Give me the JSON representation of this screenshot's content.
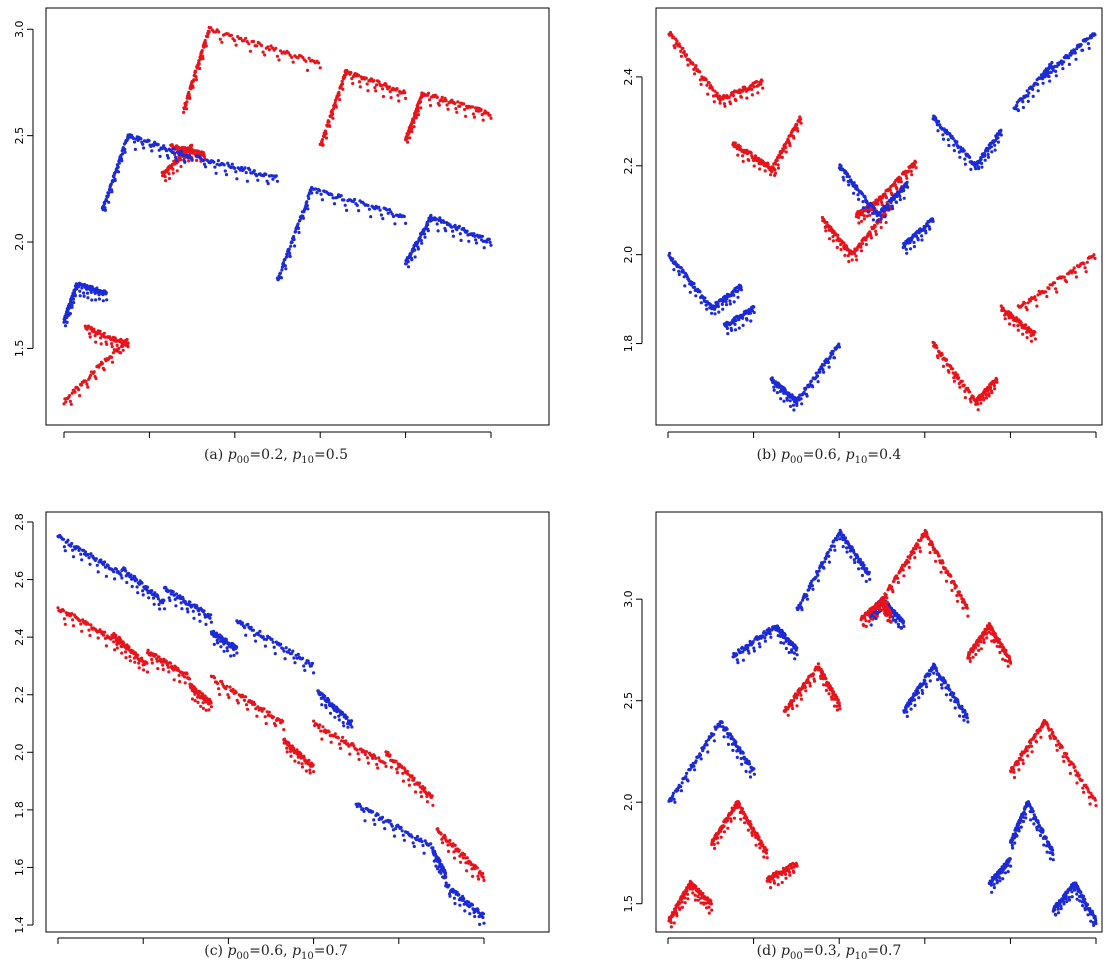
{
  "colors": {
    "red": "#e8141b",
    "blue": "#1d2bd6"
  },
  "panels": [
    {
      "id": "a",
      "caption": {
        "label": "(a)",
        "p00": "0.2",
        "p10": "0.5"
      },
      "yticks": [
        "1.5",
        "2.0",
        "2.5",
        "3.0"
      ]
    },
    {
      "id": "b",
      "caption": {
        "label": "(b)",
        "p00": "0.6",
        "p10": "0.4"
      },
      "yticks": [
        "1.8",
        "2.0",
        "2.2",
        "2.4"
      ]
    },
    {
      "id": "c",
      "caption": {
        "label": "(c)",
        "p00": "0.6",
        "p10": "0.7"
      },
      "yticks": [
        "1.4",
        "1.6",
        "1.8",
        "2.0",
        "2.2",
        "2.4",
        "2.6",
        "2.8"
      ]
    },
    {
      "id": "d",
      "caption": {
        "label": "(d)",
        "p00": "0.3",
        "p10": "0.7"
      },
      "yticks": [
        "1.5",
        "2.0",
        "2.5",
        "3.0"
      ]
    }
  ],
  "chart_data": [
    {
      "type": "scatter",
      "title": "(a) p00=0.2, p10=0.5",
      "xlabel": "",
      "ylabel": "",
      "xlim": [
        0,
        1
      ],
      "ylim": [
        1.22,
        3.02
      ],
      "yticks": [
        1.5,
        2.0,
        2.5,
        3.0
      ],
      "grid": false,
      "series": [
        {
          "color": "red",
          "segments": [
            {
              "x0": 0.0,
              "x1": 0.15,
              "y0": 1.25,
              "y1": 1.55
            },
            {
              "x0": 0.05,
              "x1": 0.15,
              "y0": 1.6,
              "y1": 1.52
            },
            {
              "x0": 0.23,
              "x1": 0.3,
              "y0": 2.32,
              "y1": 2.45
            },
            {
              "x0": 0.25,
              "x1": 0.33,
              "y0": 2.45,
              "y1": 2.41
            },
            {
              "x0": 0.28,
              "x1": 0.34,
              "y0": 2.62,
              "y1": 3.0
            },
            {
              "x0": 0.34,
              "x1": 0.6,
              "y0": 3.0,
              "y1": 2.84
            },
            {
              "x0": 0.6,
              "x1": 0.66,
              "y0": 2.45,
              "y1": 2.8
            },
            {
              "x0": 0.66,
              "x1": 0.8,
              "y0": 2.8,
              "y1": 2.7
            },
            {
              "x0": 0.8,
              "x1": 0.84,
              "y0": 2.48,
              "y1": 2.7
            },
            {
              "x0": 0.84,
              "x1": 1.0,
              "y0": 2.7,
              "y1": 2.6
            }
          ]
        },
        {
          "color": "blue",
          "segments": [
            {
              "x0": 0.0,
              "x1": 0.03,
              "y0": 1.63,
              "y1": 1.8
            },
            {
              "x0": 0.03,
              "x1": 0.1,
              "y0": 1.8,
              "y1": 1.76
            },
            {
              "x0": 0.09,
              "x1": 0.15,
              "y0": 2.15,
              "y1": 2.5
            },
            {
              "x0": 0.15,
              "x1": 0.3,
              "y0": 2.5,
              "y1": 2.4
            },
            {
              "x0": 0.31,
              "x1": 0.5,
              "y0": 2.4,
              "y1": 2.3
            },
            {
              "x0": 0.5,
              "x1": 0.58,
              "y0": 1.82,
              "y1": 2.25
            },
            {
              "x0": 0.58,
              "x1": 0.8,
              "y0": 2.25,
              "y1": 2.12
            },
            {
              "x0": 0.8,
              "x1": 0.86,
              "y0": 1.9,
              "y1": 2.12
            },
            {
              "x0": 0.86,
              "x1": 1.0,
              "y0": 2.12,
              "y1": 2.0
            }
          ]
        }
      ]
    },
    {
      "type": "scatter",
      "title": "(b) p00=0.6, p10=0.4",
      "xlabel": "",
      "ylabel": "",
      "xlim": [
        0,
        1
      ],
      "ylim": [
        1.655,
        2.51
      ],
      "yticks": [
        1.8,
        2.0,
        2.2,
        2.4
      ],
      "grid": false,
      "series": [
        {
          "color": "red",
          "segments": [
            {
              "x0": 0.0,
              "x1": 0.12,
              "y0": 2.5,
              "y1": 2.35
            },
            {
              "x0": 0.12,
              "x1": 0.22,
              "y0": 2.35,
              "y1": 2.39
            },
            {
              "x0": 0.15,
              "x1": 0.25,
              "y0": 2.25,
              "y1": 2.19
            },
            {
              "x0": 0.24,
              "x1": 0.31,
              "y0": 2.19,
              "y1": 2.31
            },
            {
              "x0": 0.36,
              "x1": 0.43,
              "y0": 2.08,
              "y1": 2.0
            },
            {
              "x0": 0.43,
              "x1": 0.52,
              "y0": 2.0,
              "y1": 2.11
            },
            {
              "x0": 0.44,
              "x1": 0.49,
              "y0": 2.09,
              "y1": 2.12
            },
            {
              "x0": 0.49,
              "x1": 0.58,
              "y0": 2.12,
              "y1": 2.21
            },
            {
              "x0": 0.62,
              "x1": 0.72,
              "y0": 1.8,
              "y1": 1.67
            },
            {
              "x0": 0.72,
              "x1": 0.77,
              "y0": 1.67,
              "y1": 1.72
            },
            {
              "x0": 0.78,
              "x1": 0.86,
              "y0": 1.88,
              "y1": 1.82
            },
            {
              "x0": 0.82,
              "x1": 1.0,
              "y0": 1.88,
              "y1": 2.0
            }
          ]
        },
        {
          "color": "blue",
          "segments": [
            {
              "x0": 0.0,
              "x1": 0.1,
              "y0": 2.0,
              "y1": 1.88
            },
            {
              "x0": 0.1,
              "x1": 0.17,
              "y0": 1.88,
              "y1": 1.93
            },
            {
              "x0": 0.13,
              "x1": 0.2,
              "y0": 1.84,
              "y1": 1.88
            },
            {
              "x0": 0.24,
              "x1": 0.3,
              "y0": 1.72,
              "y1": 1.67
            },
            {
              "x0": 0.3,
              "x1": 0.4,
              "y0": 1.67,
              "y1": 1.8
            },
            {
              "x0": 0.4,
              "x1": 0.49,
              "y0": 2.2,
              "y1": 2.09
            },
            {
              "x0": 0.49,
              "x1": 0.56,
              "y0": 2.09,
              "y1": 2.16
            },
            {
              "x0": 0.55,
              "x1": 0.62,
              "y0": 2.02,
              "y1": 2.08
            },
            {
              "x0": 0.62,
              "x1": 0.72,
              "y0": 2.31,
              "y1": 2.2
            },
            {
              "x0": 0.72,
              "x1": 0.78,
              "y0": 2.2,
              "y1": 2.28
            },
            {
              "x0": 0.81,
              "x1": 0.9,
              "y0": 2.33,
              "y1": 2.43
            },
            {
              "x0": 0.88,
              "x1": 1.0,
              "y0": 2.4,
              "y1": 2.5
            }
          ]
        }
      ]
    },
    {
      "type": "scatter",
      "title": "(c) p00=0.6, p10=0.7",
      "xlabel": "",
      "ylabel": "",
      "xlim": [
        0,
        1
      ],
      "ylim": [
        1.4,
        2.8
      ],
      "yticks": [
        1.4,
        1.6,
        1.8,
        2.0,
        2.2,
        2.4,
        2.6,
        2.8
      ],
      "grid": false,
      "series": [
        {
          "color": "blue",
          "segments": [
            {
              "x0": 0.0,
              "x1": 0.15,
              "y0": 2.75,
              "y1": 2.62
            },
            {
              "x0": 0.15,
              "x1": 0.25,
              "y0": 2.64,
              "y1": 2.52
            },
            {
              "x0": 0.25,
              "x1": 0.36,
              "y0": 2.57,
              "y1": 2.47
            },
            {
              "x0": 0.36,
              "x1": 0.42,
              "y0": 2.42,
              "y1": 2.36
            },
            {
              "x0": 0.42,
              "x1": 0.6,
              "y0": 2.46,
              "y1": 2.3
            },
            {
              "x0": 0.61,
              "x1": 0.69,
              "y0": 2.21,
              "y1": 2.1
            },
            {
              "x0": 0.7,
              "x1": 0.88,
              "y0": 1.82,
              "y1": 1.67
            },
            {
              "x0": 0.88,
              "x1": 0.91,
              "y0": 1.66,
              "y1": 1.58
            },
            {
              "x0": 0.91,
              "x1": 1.0,
              "y0": 1.54,
              "y1": 1.43
            }
          ]
        },
        {
          "color": "red",
          "segments": [
            {
              "x0": 0.0,
              "x1": 0.15,
              "y0": 2.5,
              "y1": 2.38
            },
            {
              "x0": 0.13,
              "x1": 0.21,
              "y0": 2.41,
              "y1": 2.3
            },
            {
              "x0": 0.21,
              "x1": 0.31,
              "y0": 2.35,
              "y1": 2.26
            },
            {
              "x0": 0.31,
              "x1": 0.36,
              "y0": 2.23,
              "y1": 2.17
            },
            {
              "x0": 0.36,
              "x1": 0.53,
              "y0": 2.26,
              "y1": 2.1
            },
            {
              "x0": 0.53,
              "x1": 0.6,
              "y0": 2.04,
              "y1": 1.95
            },
            {
              "x0": 0.6,
              "x1": 0.77,
              "y0": 2.1,
              "y1": 1.96
            },
            {
              "x0": 0.77,
              "x1": 0.88,
              "y0": 2.0,
              "y1": 1.84
            },
            {
              "x0": 0.89,
              "x1": 1.0,
              "y0": 1.73,
              "y1": 1.57
            }
          ]
        }
      ]
    },
    {
      "type": "scatter",
      "title": "(d) p00=0.3, p10=0.7",
      "xlabel": "",
      "ylabel": "",
      "xlim": [
        0,
        1
      ],
      "ylim": [
        1.41,
        3.38
      ],
      "yticks": [
        1.5,
        2.0,
        2.5,
        3.0
      ],
      "grid": false,
      "series": [
        {
          "color": "blue",
          "segments": [
            {
              "x0": 0.0,
              "x1": 0.12,
              "y0": 2.0,
              "y1": 2.4
            },
            {
              "x0": 0.12,
              "x1": 0.2,
              "y0": 2.4,
              "y1": 2.15
            },
            {
              "x0": 0.15,
              "x1": 0.25,
              "y0": 2.72,
              "y1": 2.87
            },
            {
              "x0": 0.25,
              "x1": 0.3,
              "y0": 2.87,
              "y1": 2.75
            },
            {
              "x0": 0.3,
              "x1": 0.4,
              "y0": 2.95,
              "y1": 3.33
            },
            {
              "x0": 0.4,
              "x1": 0.47,
              "y0": 3.33,
              "y1": 3.12
            },
            {
              "x0": 0.47,
              "x1": 0.5,
              "y0": 2.92,
              "y1": 3.0
            },
            {
              "x0": 0.5,
              "x1": 0.55,
              "y0": 3.0,
              "y1": 2.88
            },
            {
              "x0": 0.55,
              "x1": 0.62,
              "y0": 2.45,
              "y1": 2.67
            },
            {
              "x0": 0.62,
              "x1": 0.7,
              "y0": 2.67,
              "y1": 2.42
            },
            {
              "x0": 0.75,
              "x1": 0.8,
              "y0": 1.6,
              "y1": 1.72
            },
            {
              "x0": 0.8,
              "x1": 0.84,
              "y0": 1.8,
              "y1": 2.0
            },
            {
              "x0": 0.84,
              "x1": 0.9,
              "y0": 2.0,
              "y1": 1.75
            },
            {
              "x0": 0.9,
              "x1": 0.95,
              "y0": 1.47,
              "y1": 1.6
            },
            {
              "x0": 0.95,
              "x1": 1.0,
              "y0": 1.6,
              "y1": 1.42
            }
          ]
        },
        {
          "color": "red",
          "segments": [
            {
              "x0": 0.0,
              "x1": 0.05,
              "y0": 1.42,
              "y1": 1.6
            },
            {
              "x0": 0.05,
              "x1": 0.1,
              "y0": 1.6,
              "y1": 1.5
            },
            {
              "x0": 0.1,
              "x1": 0.16,
              "y0": 1.8,
              "y1": 2.0
            },
            {
              "x0": 0.16,
              "x1": 0.23,
              "y0": 2.0,
              "y1": 1.75
            },
            {
              "x0": 0.23,
              "x1": 0.3,
              "y0": 1.62,
              "y1": 1.7
            },
            {
              "x0": 0.27,
              "x1": 0.35,
              "y0": 2.45,
              "y1": 2.67
            },
            {
              "x0": 0.35,
              "x1": 0.4,
              "y0": 2.67,
              "y1": 2.48
            },
            {
              "x0": 0.45,
              "x1": 0.5,
              "y0": 2.9,
              "y1": 3.0
            },
            {
              "x0": 0.5,
              "x1": 0.52,
              "y0": 3.0,
              "y1": 2.92
            },
            {
              "x0": 0.5,
              "x1": 0.6,
              "y0": 3.0,
              "y1": 3.33
            },
            {
              "x0": 0.6,
              "x1": 0.7,
              "y0": 3.33,
              "y1": 2.95
            },
            {
              "x0": 0.7,
              "x1": 0.75,
              "y0": 2.72,
              "y1": 2.87
            },
            {
              "x0": 0.75,
              "x1": 0.8,
              "y0": 2.87,
              "y1": 2.7
            },
            {
              "x0": 0.8,
              "x1": 0.88,
              "y0": 2.15,
              "y1": 2.4
            },
            {
              "x0": 0.88,
              "x1": 1.0,
              "y0": 2.4,
              "y1": 2.0
            }
          ]
        }
      ]
    }
  ]
}
